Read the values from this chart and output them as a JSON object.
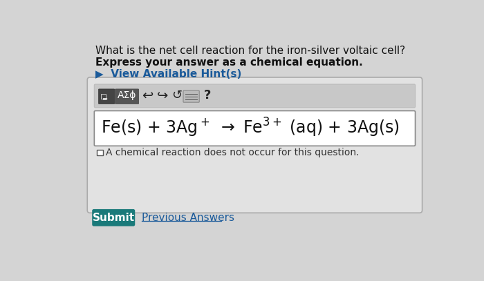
{
  "bg_color": "#d4d4d4",
  "title_line1": "What is the net cell reaction for the iron-silver voltaic cell?",
  "title_line2": "Express your answer as a chemical equation.",
  "hint_text": "▶  View Available Hint(s)",
  "checkbox_text": "A chemical reaction does not occur for this question.",
  "submit_text": "Submit",
  "prev_text": "Previous Answers",
  "toolbar_symbols": "AΣϕ",
  "submit_bg": "#1a7a7a",
  "submit_text_color": "#ffffff",
  "hint_color": "#1a5a9a",
  "prev_color": "#1a5a9a",
  "outer_box_bg": "#e2e2e2",
  "toolbar_bg": "#c8c8c8",
  "icon_dark": "#444444",
  "icon_mid": "#555555"
}
